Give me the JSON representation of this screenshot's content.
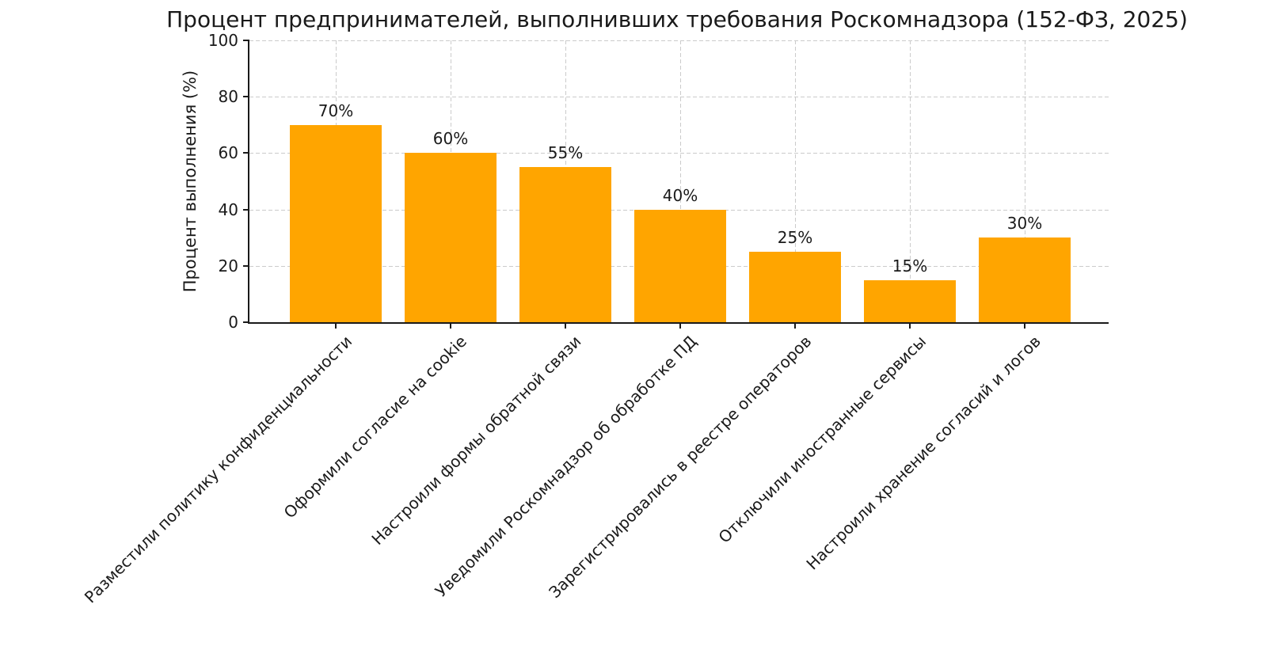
{
  "chart_data": {
    "type": "bar",
    "title": "Процент предпринимателей, выполнивших требования Роскомнадзора (152-ФЗ, 2025)",
    "ylabel": "Процент выполнения (%)",
    "xlabel": "",
    "categories": [
      "Разместили политику конфиденциальности",
      "Оформили согласие на cookie",
      "Настроили формы обратной связи",
      "Уведомили Роскомнадзор об обработке ПД",
      "Зарегистрировались в реестре операторов",
      "Отключили иностранные сервисы",
      "Настроили хранение согласий и логов"
    ],
    "values": [
      70,
      60,
      55,
      40,
      25,
      15,
      30
    ],
    "value_labels": [
      "70%",
      "60%",
      "55%",
      "40%",
      "25%",
      "15%",
      "30%"
    ],
    "ylim": [
      0,
      100
    ],
    "yticks": [
      0,
      20,
      40,
      60,
      80,
      100
    ],
    "bar_color": "#FFA500",
    "grid": true,
    "grid_style": "dashed",
    "legend_position": "none"
  }
}
